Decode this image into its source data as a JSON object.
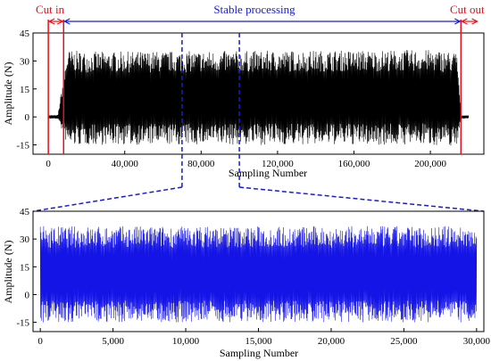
{
  "chart_data": [
    {
      "type": "line",
      "panel": "full-signal",
      "xlabel": "Sampling Number",
      "ylabel": "Amplitude (N)",
      "xlim": [
        -8000,
        228000
      ],
      "ylim": [
        -20,
        45
      ],
      "x_ticks": [
        0,
        40000,
        80000,
        120000,
        160000,
        200000
      ],
      "x_tick_labels": [
        "0",
        "40,000",
        "80,000",
        "120,000",
        "160,000",
        "200,000"
      ],
      "y_ticks": [
        -15,
        0,
        15,
        30,
        45
      ],
      "y_tick_labels": [
        "-15",
        "0",
        "15",
        "30",
        "45"
      ],
      "series": [
        {
          "color": "#000000",
          "envelope": {
            "x": [
              0,
              5000,
              10000,
              20000,
              200000,
              214000,
              216000,
              220000
            ],
            "upper": [
              1,
              1,
              36,
              35,
              36,
              35,
              1,
              1
            ],
            "lower": [
              -1,
              -1,
              -16,
              -15,
              -15,
              -16,
              -1,
              -1
            ]
          }
        }
      ],
      "region_markers": {
        "cut_in": {
          "label": "Cut in",
          "x_start": 0,
          "x_end": 8000
        },
        "stable": {
          "label": "Stable processing",
          "x_start": 8000,
          "x_end": 216000
        },
        "cut_out": {
          "label": "Cut out",
          "x_start": 216000,
          "x_end": 225000
        }
      },
      "zoom_window": [
        70000,
        100000
      ],
      "colors": {
        "region": "#e8101a",
        "stable": "#1a1adc",
        "signal": "#000000"
      }
    },
    {
      "type": "line",
      "panel": "zoom-signal",
      "xlabel": "Sampling Number",
      "ylabel": "Amplitude (N)",
      "xlim": [
        -500,
        30500
      ],
      "ylim": [
        -20,
        45
      ],
      "x_ticks": [
        0,
        5000,
        10000,
        15000,
        20000,
        25000,
        30000
      ],
      "x_tick_labels": [
        "0",
        "5,000",
        "10,000",
        "15,000",
        "20,000",
        "25,000",
        "30,000"
      ],
      "y_ticks": [
        -15,
        0,
        15,
        30,
        45
      ],
      "y_tick_labels": [
        "-15",
        "0",
        "15",
        "30",
        "45"
      ],
      "series": [
        {
          "color": "#1414e6",
          "envelope": {
            "x": [
              0,
              30000
            ],
            "upper": [
              37,
              37
            ],
            "lower": [
              -15,
              -15
            ]
          }
        }
      ]
    }
  ]
}
